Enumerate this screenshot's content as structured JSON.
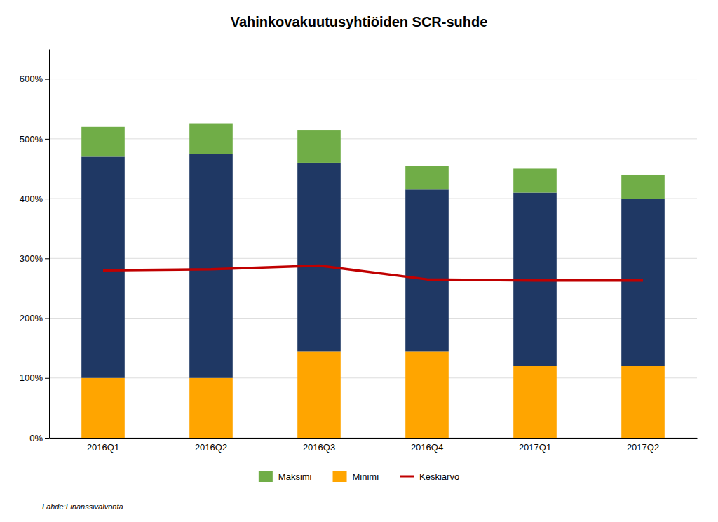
{
  "chart_data": {
    "type": "bar",
    "stacked": true,
    "title": "Vahinkovakuutusyhtiöiden SCR-suhde",
    "categories": [
      "2016Q1",
      "2016Q2",
      "2016Q3",
      "2016Q4",
      "2017Q1",
      "2017Q2"
    ],
    "series": [
      {
        "name": "Minimi",
        "type": "bar",
        "color": "#FFA500",
        "values": [
          100,
          100,
          145,
          145,
          120,
          120
        ]
      },
      {
        "type": "bar",
        "color": "#1F3864",
        "values": [
          370,
          375,
          315,
          270,
          290,
          280
        ]
      },
      {
        "name": "Maksimi",
        "type": "bar",
        "color": "#70AD47",
        "values": [
          50,
          50,
          55,
          40,
          40,
          40
        ]
      },
      {
        "name": "Keskiarvo",
        "type": "line",
        "color": "#C00000",
        "values": [
          280,
          282,
          288,
          265,
          263,
          263
        ]
      }
    ],
    "ylim": [
      0,
      650
    ],
    "yticks": [
      {
        "value": 0,
        "label": "0%"
      },
      {
        "value": 100,
        "label": "100%"
      },
      {
        "value": 200,
        "label": "200%"
      },
      {
        "value": 300,
        "label": "300%"
      },
      {
        "value": 400,
        "label": "400%"
      },
      {
        "value": 500,
        "label": "500%"
      },
      {
        "value": 600,
        "label": "600%"
      }
    ],
    "grid": true,
    "legend": "bottom",
    "annotations": [
      "Lähde:Finanssivalvonta"
    ]
  }
}
